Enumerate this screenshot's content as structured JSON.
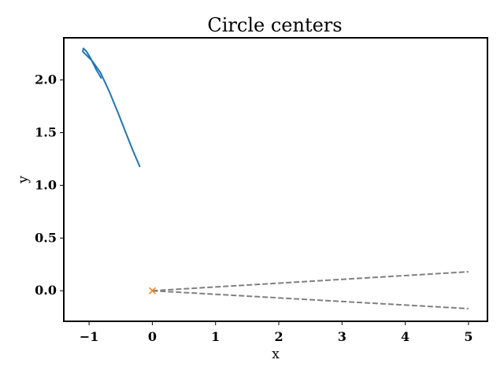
{
  "chart_data": {
    "type": "line",
    "title": "Circle centers",
    "xlabel": "x",
    "ylabel": "y",
    "xlim": [
      -1.4,
      5.3
    ],
    "ylim": [
      -0.29,
      2.4
    ],
    "xticks": [
      {
        "value": -1,
        "label": "−1"
      },
      {
        "value": 0,
        "label": "0"
      },
      {
        "value": 1,
        "label": "1"
      },
      {
        "value": 2,
        "label": "2"
      },
      {
        "value": 3,
        "label": "3"
      },
      {
        "value": 4,
        "label": "4"
      },
      {
        "value": 5,
        "label": "5"
      }
    ],
    "yticks": [
      {
        "value": 0.0,
        "label": "0.0"
      },
      {
        "value": 0.5,
        "label": "0.5"
      },
      {
        "value": 1.0,
        "label": "1.0"
      },
      {
        "value": 1.5,
        "label": "1.5"
      },
      {
        "value": 2.0,
        "label": "2.0"
      }
    ],
    "grid": false,
    "series": [
      {
        "style": "solid",
        "color": "#1f77b4",
        "points": [
          [
            -0.2,
            1.18
          ],
          [
            -0.3,
            1.32
          ],
          [
            -0.42,
            1.5
          ],
          [
            -0.55,
            1.7
          ],
          [
            -0.68,
            1.89
          ],
          [
            -0.82,
            2.07
          ],
          [
            -0.95,
            2.18
          ],
          [
            -1.05,
            2.24
          ],
          [
            -1.1,
            2.27
          ],
          [
            -1.09,
            2.3
          ],
          [
            -1.04,
            2.27
          ],
          [
            -0.97,
            2.2
          ],
          [
            -0.89,
            2.1
          ],
          [
            -0.81,
            2.02
          ]
        ]
      },
      {
        "style": "dashed",
        "color": "#808080",
        "points": [
          [
            0.0,
            0.0
          ],
          [
            5.0,
            0.18
          ]
        ]
      },
      {
        "style": "dashed",
        "color": "#808080",
        "points": [
          [
            0.0,
            0.0
          ],
          [
            5.0,
            -0.17
          ]
        ]
      }
    ],
    "markers": [
      {
        "x": 0.0,
        "y": 0.0,
        "symbol": "x",
        "color": "#ff7f0e"
      }
    ]
  }
}
